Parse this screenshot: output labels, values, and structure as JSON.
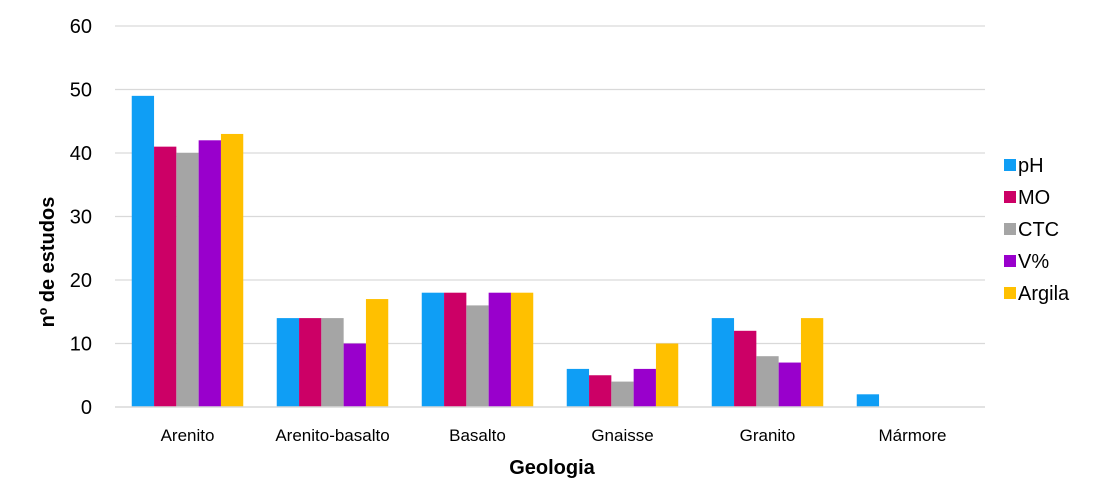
{
  "chart_data": {
    "type": "bar",
    "title": "",
    "xlabel": "Geologia",
    "ylabel": "nº de estudos",
    "ylim": [
      0,
      60
    ],
    "yticks": [
      0,
      10,
      20,
      30,
      40,
      50,
      60
    ],
    "grid": true,
    "legend_position": "right",
    "categories": [
      "Arenito",
      "Arenito-basalto",
      "Basalto",
      "Gnaisse",
      "Granito",
      "Mármore"
    ],
    "series": [
      {
        "name": "pH",
        "color": "#0F9EF5",
        "values": [
          49,
          14,
          18,
          6,
          14,
          2
        ]
      },
      {
        "name": "MO",
        "color": "#CC0066",
        "values": [
          41,
          14,
          18,
          5,
          12,
          0
        ]
      },
      {
        "name": "CTC",
        "color": "#A5A5A5",
        "values": [
          40,
          14,
          16,
          4,
          8,
          0
        ]
      },
      {
        "name": "V%",
        "color": "#9900CC",
        "values": [
          42,
          10,
          18,
          6,
          7,
          0
        ]
      },
      {
        "name": "Argila",
        "color": "#FFC000",
        "values": [
          43,
          17,
          18,
          10,
          14,
          0
        ]
      }
    ]
  }
}
